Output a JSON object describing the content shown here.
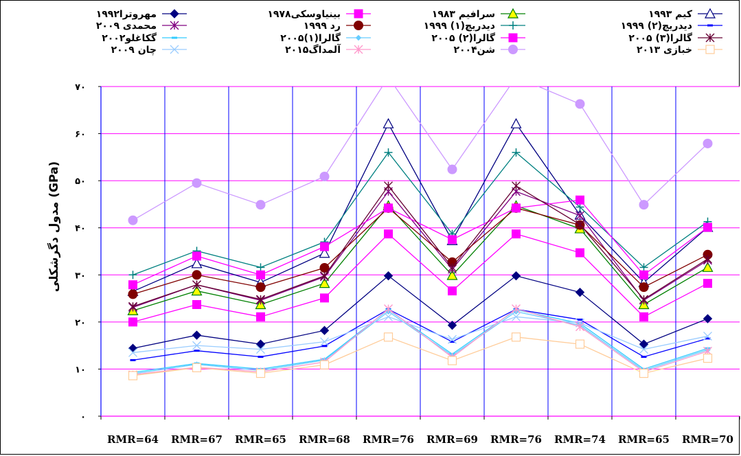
{
  "chart_data": {
    "type": "line",
    "title": "",
    "xlabel": "",
    "ylabel": "مدول دگرشکلی (GPa)",
    "categories": [
      "RMR=64",
      "RMR=67",
      "RMR=65",
      "RMR=68",
      "RMR=76",
      "RMR=69",
      "RMR=76",
      "RMR=74",
      "RMR=65",
      "RMR=70"
    ],
    "ylim": [
      0,
      70
    ],
    "yticks": [
      0,
      10,
      20,
      30,
      40,
      50,
      60,
      70
    ],
    "ytick_labels": [
      "۰",
      "۱۰",
      "۲۰",
      "۳۰",
      "۴۰",
      "۵۰",
      "۶۰",
      "۷۰"
    ],
    "grid": true,
    "legend_position": "top",
    "series": [
      {
        "name": "مهروترا۱۹۹۲",
        "color": "#000080",
        "marker": "diamond",
        "values": [
          14.4,
          17.2,
          15.3,
          18.2,
          29.8,
          19.3,
          29.8,
          26.3,
          15.3,
          20.7
        ]
      },
      {
        "name": "بینیاوسکی۱۹۷۸",
        "color": "#ff00ff",
        "marker": "square",
        "values": [
          20.0,
          23.7,
          21.1,
          25.1,
          38.7,
          26.6,
          38.7,
          34.7,
          21.1,
          28.2
        ]
      },
      {
        "name": "سرافیم ۱۹۸۳",
        "color": "#008000",
        "marker": "triangle",
        "values": [
          22.4,
          26.6,
          23.7,
          28.2,
          44.7,
          29.9,
          44.7,
          39.8,
          23.7,
          31.6
        ]
      },
      {
        "name": "کیم ۱۹۹۳",
        "color": "#000080",
        "marker": "triangle-open",
        "values": [
          26.5,
          32.4,
          28.4,
          34.6,
          62.1,
          37.3,
          62.1,
          42.7,
          28.4,
          40.1
        ]
      },
      {
        "name": "محمدی ۲۰۰۹",
        "color": "#800080",
        "marker": "star",
        "values": [
          23.1,
          27.9,
          24.6,
          29.6,
          47.7,
          31.2,
          47.7,
          42.6,
          24.6,
          33.1
        ]
      },
      {
        "name": "رد ۱۹۹۹",
        "color": "#800000",
        "marker": "circle",
        "values": [
          25.9,
          30.0,
          27.4,
          31.5,
          44.2,
          32.7,
          44.2,
          40.6,
          27.4,
          34.3
        ]
      },
      {
        "name": "دیدریچ(۱) ۱۹۹۹",
        "color": "#008080",
        "marker": "plus",
        "values": [
          30.0,
          35.1,
          31.6,
          37.0,
          56.0,
          38.7,
          56.0,
          44.4,
          31.6,
          41.3
        ]
      },
      {
        "name": "دیدریچ(۲) ۱۹۹۹",
        "color": "#0000ff",
        "marker": "dash",
        "values": [
          11.9,
          13.9,
          12.6,
          14.9,
          22.7,
          15.8,
          22.7,
          20.5,
          12.6,
          16.5
        ]
      },
      {
        "name": "گکاغلو۲۰۰۲",
        "color": "#33ccff",
        "marker": "dash",
        "values": [
          9.3,
          11.2,
          10.0,
          12.1,
          22.6,
          13.2,
          22.6,
          19.7,
          10.0,
          14.4
        ]
      },
      {
        "name": "گالرا(۱)۲۰۰۵",
        "color": "#66ccff",
        "marker": "diamond-small",
        "values": [
          9.0,
          11.0,
          9.7,
          11.9,
          22.2,
          12.9,
          22.2,
          19.3,
          9.7,
          14.1
        ]
      },
      {
        "name": "گالرا(۲) ۲۰۰۵",
        "color": "#ff00ff",
        "marker": "square",
        "values": [
          27.9,
          34.0,
          30.0,
          36.0,
          44.2,
          37.5,
          44.2,
          45.9,
          30.0,
          40.1
        ]
      },
      {
        "name": "گالرا(۳) ۲۰۰۵",
        "color": "#660033",
        "marker": "star",
        "values": [
          23.3,
          27.9,
          24.8,
          29.8,
          48.9,
          31.6,
          48.9,
          40.7,
          24.8,
          33.4
        ]
      },
      {
        "name": "چان ۲۰۰۹",
        "color": "#99ccff",
        "marker": "x",
        "values": [
          13.5,
          15.0,
          14.2,
          15.8,
          21.1,
          16.3,
          21.1,
          19.8,
          14.2,
          17.0
        ]
      },
      {
        "name": "آلمداگ۲۰۱۵",
        "color": "#ff99cc",
        "marker": "star",
        "values": [
          8.8,
          10.4,
          9.4,
          11.5,
          22.8,
          12.5,
          22.8,
          19.0,
          9.4,
          13.8
        ]
      },
      {
        "name": "شن۲۰۰۴",
        "color": "#cc99ff",
        "marker": "circle",
        "values": [
          41.6,
          49.5,
          44.9,
          50.9,
          72.0,
          52.4,
          72.0,
          66.3,
          44.9,
          57.9
        ]
      },
      {
        "name": "خبازی ۲۰۱۳",
        "color": "#ffcc99",
        "marker": "square-open",
        "values": [
          8.6,
          10.3,
          9.1,
          10.9,
          16.8,
          11.8,
          16.8,
          15.3,
          9.1,
          12.3
        ]
      }
    ]
  }
}
